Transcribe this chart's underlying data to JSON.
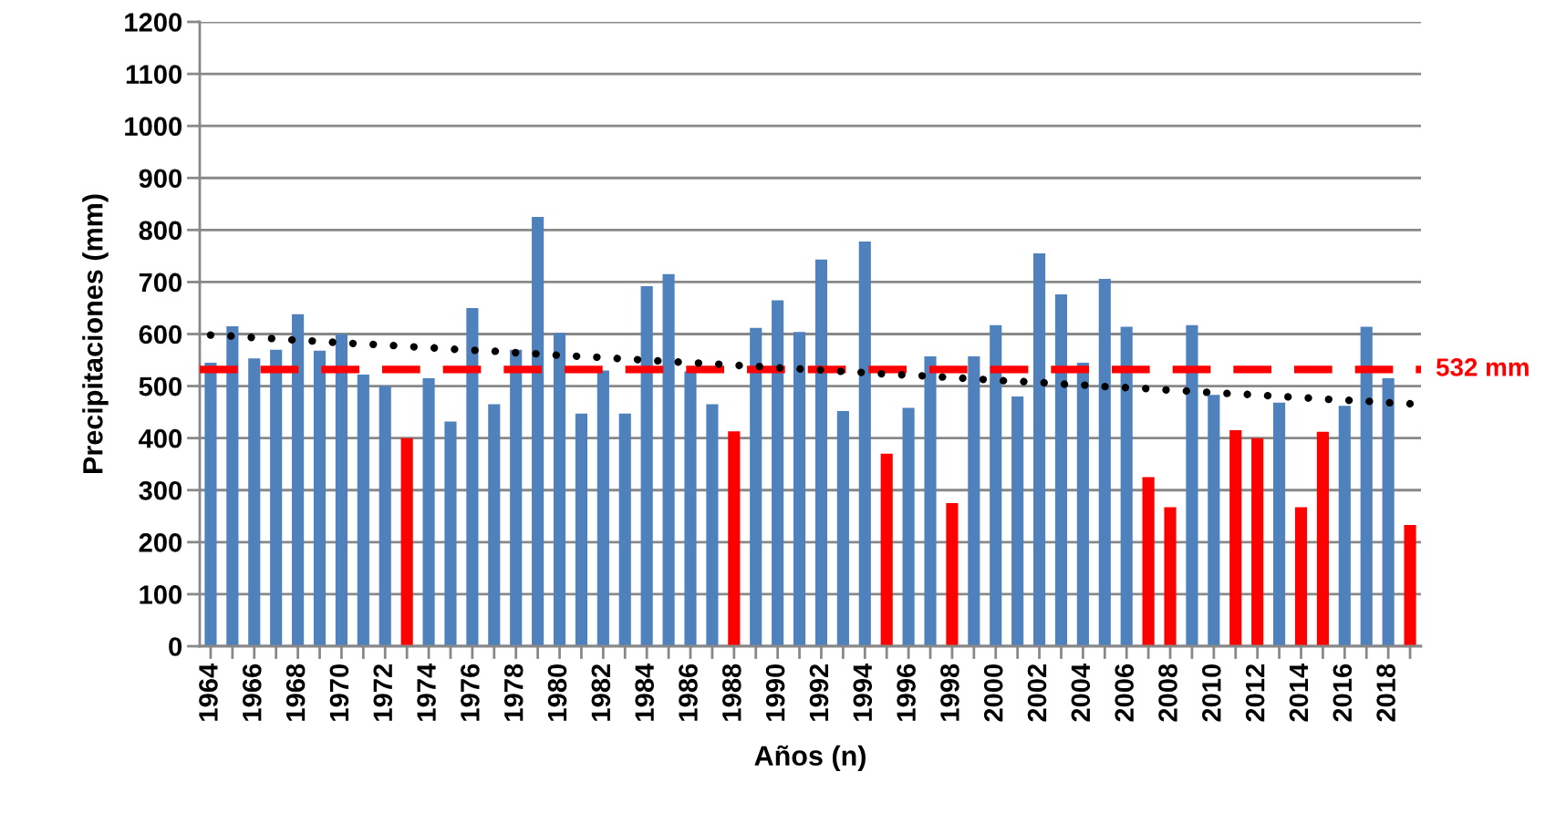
{
  "chart_data": {
    "type": "bar",
    "xlabel": "Años (n)",
    "ylabel": "Precipitaciones (mm)",
    "categories": [
      "1964",
      null,
      "1966",
      null,
      "1968",
      null,
      "1970",
      null,
      "1972",
      null,
      "1974",
      null,
      "1976",
      null,
      "1978",
      null,
      "1980",
      null,
      "1982",
      null,
      "1984",
      null,
      "1986",
      null,
      "1988",
      null,
      "1990",
      null,
      "1992",
      null,
      "1994",
      null,
      "1996",
      null,
      "1998",
      null,
      "2000",
      null,
      "2002",
      null,
      "2004",
      null,
      "2006",
      null,
      "2008",
      null,
      "2010",
      null,
      "2012",
      null,
      "2014",
      null,
      "2016",
      null,
      "2018",
      null
    ],
    "series": [
      {
        "values": [
          545,
          615,
          553,
          570,
          638,
          568,
          600,
          522,
          500,
          400,
          515,
          432,
          650,
          465,
          570,
          825,
          602,
          447,
          530,
          447,
          692,
          715,
          528,
          465,
          413,
          612,
          665,
          604,
          743,
          452,
          778,
          370,
          458,
          557,
          275,
          557,
          617,
          480,
          755,
          676,
          545,
          706,
          614,
          325,
          267,
          617,
          483,
          415,
          400,
          468,
          267,
          412,
          462,
          614,
          515,
          233
        ],
        "colors": [
          "#4f81bd",
          "#4f81bd",
          "#4f81bd",
          "#4f81bd",
          "#4f81bd",
          "#4f81bd",
          "#4f81bd",
          "#4f81bd",
          "#4f81bd",
          "#ff0000",
          "#4f81bd",
          "#4f81bd",
          "#4f81bd",
          "#4f81bd",
          "#4f81bd",
          "#4f81bd",
          "#4f81bd",
          "#4f81bd",
          "#4f81bd",
          "#4f81bd",
          "#4f81bd",
          "#4f81bd",
          "#4f81bd",
          "#4f81bd",
          "#ff0000",
          "#4f81bd",
          "#4f81bd",
          "#4f81bd",
          "#4f81bd",
          "#4f81bd",
          "#4f81bd",
          "#ff0000",
          "#4f81bd",
          "#4f81bd",
          "#ff0000",
          "#4f81bd",
          "#4f81bd",
          "#4f81bd",
          "#4f81bd",
          "#4f81bd",
          "#4f81bd",
          "#4f81bd",
          "#4f81bd",
          "#ff0000",
          "#ff0000",
          "#4f81bd",
          "#4f81bd",
          "#ff0000",
          "#ff0000",
          "#4f81bd",
          "#ff0000",
          "#ff0000",
          "#4f81bd",
          "#4f81bd",
          "#4f81bd",
          "#ff0000"
        ]
      },
      {
        "type": "line",
        "color": "#000000",
        "line_style": "dotted",
        "marker": "none",
        "values": [
          598,
          596,
          593,
          591,
          588,
          586,
          583,
          581,
          579,
          576,
          574,
          571,
          569,
          567,
          564,
          562,
          559,
          557,
          555,
          552,
          550,
          547,
          545,
          543,
          540,
          538,
          535,
          533,
          531,
          528,
          526,
          523,
          521,
          519,
          516,
          514,
          511,
          509,
          507,
          504,
          502,
          499,
          497,
          495,
          492,
          490,
          487,
          485,
          483,
          480,
          478,
          475,
          473,
          471,
          468,
          466
        ]
      }
    ],
    "ylim": [
      0,
      1200
    ],
    "yticks": [
      0,
      100,
      200,
      300,
      400,
      500,
      600,
      700,
      800,
      900,
      1000,
      1100,
      1200
    ],
    "grid": "y",
    "ref_lines": [
      {
        "axis": "y",
        "value": 532,
        "label": "532 mm",
        "color": "#ff0000",
        "line_style": "dashed"
      }
    ]
  }
}
